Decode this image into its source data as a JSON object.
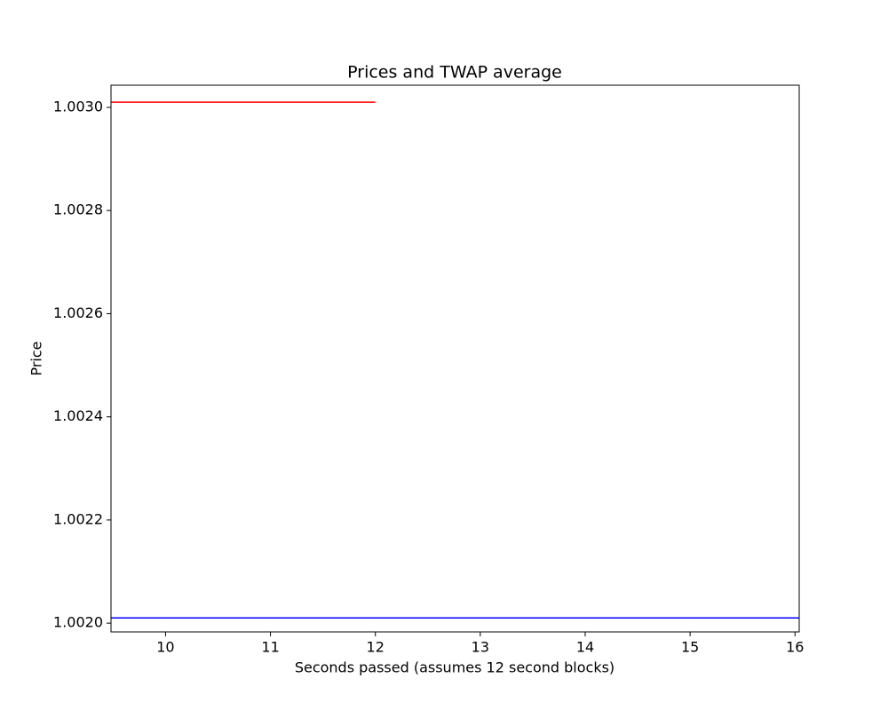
{
  "chart_data": {
    "type": "line",
    "title": "Prices and TWAP average",
    "xlabel": "Seconds passed (assumes 12 second blocks)",
    "ylabel": "Price",
    "series": [
      {
        "color": "#ff0000",
        "x": [
          9.48,
          12
        ],
        "values": [
          1.00301,
          1.00301
        ]
      },
      {
        "color": "#0000ff",
        "x": [
          9.48,
          16.04
        ],
        "values": [
          1.00201,
          1.00201
        ]
      }
    ],
    "xlim": [
      9.48,
      16.04
    ],
    "xticks": [
      10,
      11,
      12,
      13,
      14,
      15,
      16
    ],
    "ylim": [
      1.001983,
      1.003043
    ],
    "yticks": [
      {
        "value": 1.002,
        "label": "1.0020"
      },
      {
        "value": 1.0022,
        "label": "1.0022"
      },
      {
        "value": 1.0024,
        "label": "1.0024"
      },
      {
        "value": 1.0026,
        "label": "1.0026"
      },
      {
        "value": 1.0028,
        "label": "1.0028"
      },
      {
        "value": 1.003,
        "label": "1.0030"
      }
    ],
    "grid": false
  }
}
